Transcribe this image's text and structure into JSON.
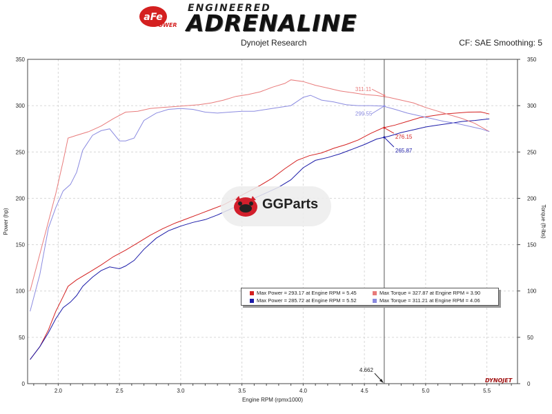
{
  "brand": {
    "badge_text": "aFe",
    "badge_sub": "POWER",
    "line1": "ENGINEERED",
    "line2": "ADRENALINE"
  },
  "header": {
    "left": "Dynojet Research",
    "right": "CF: SAE Smoothing: 5"
  },
  "watermark": {
    "text": "GGParts"
  },
  "colors": {
    "power_run1": "#d42020",
    "power_run2": "#1a1aa8",
    "torque_run1": "#e87a7a",
    "torque_run2": "#8a8ae0",
    "grid": "#d0d0d0",
    "cursor": "#555555"
  },
  "legend": [
    {
      "color": "#d42020",
      "text": "Max Power = 293.17 at Engine RPM = 5.45"
    },
    {
      "color": "#e87a7a",
      "text": "Max Torque = 327.87 at Engine RPM = 3.90"
    },
    {
      "color": "#1a1aa8",
      "text": "Max Power = 285.72 at Engine RPM = 5.52"
    },
    {
      "color": "#8a8ae0",
      "text": "Max Torque = 311.21 at Engine RPM = 4.06"
    }
  ],
  "chart_data": {
    "type": "line",
    "xlabel": "Engine RPM (rpmx1000)",
    "ylabel_left": "Power (hp)",
    "ylabel_right": "Torque (ft-lbs)",
    "xlim": [
      1.75,
      5.75
    ],
    "ylim": [
      0,
      350
    ],
    "xticks": [
      "2.0",
      "2.5",
      "3.0",
      "3.5",
      "4.0",
      "4.5",
      "5.0",
      "5.5"
    ],
    "yticks": [
      "0",
      "50",
      "100",
      "150",
      "200",
      "250",
      "300",
      "350"
    ],
    "grid": true,
    "cursor": {
      "x": 4.662,
      "label": "4.662"
    },
    "annotations": [
      {
        "text": "311.11",
        "x": 4.662,
        "y": 311.11,
        "series": 2
      },
      {
        "text": "299.55",
        "x": 4.662,
        "y": 299.55,
        "series": 3
      },
      {
        "text": "276.15",
        "x": 4.662,
        "y": 276.15,
        "series": 0
      },
      {
        "text": "265.87",
        "x": 4.662,
        "y": 265.87,
        "series": 1
      }
    ],
    "watermark_logo": "DYNOJET",
    "series": [
      {
        "x": [
          1.77,
          1.85,
          1.92,
          1.98,
          2.04,
          2.08,
          2.15,
          2.25,
          2.35,
          2.45,
          2.55,
          2.65,
          2.75,
          2.85,
          2.95,
          3.05,
          3.15,
          3.25,
          3.35,
          3.45,
          3.55,
          3.65,
          3.75,
          3.85,
          3.95,
          4.05,
          4.15,
          4.25,
          4.35,
          4.45,
          4.55,
          4.65,
          4.75,
          4.85,
          4.95,
          5.05,
          5.15,
          5.25,
          5.35,
          5.45,
          5.52
        ],
        "values": [
          26,
          40,
          58,
          78,
          94,
          105,
          112,
          120,
          128,
          137,
          144,
          152,
          160,
          167,
          173,
          178,
          183,
          188,
          193,
          200,
          207,
          214,
          222,
          232,
          241,
          246,
          249,
          254,
          258,
          263,
          270,
          276,
          279,
          283,
          287,
          289,
          291,
          292,
          293,
          293.17,
          291
        ]
      },
      {
        "x": [
          1.77,
          1.85,
          1.92,
          1.98,
          2.04,
          2.1,
          2.15,
          2.2,
          2.28,
          2.35,
          2.42,
          2.5,
          2.55,
          2.62,
          2.7,
          2.8,
          2.9,
          3.0,
          3.1,
          3.2,
          3.3,
          3.4,
          3.5,
          3.6,
          3.7,
          3.8,
          3.9,
          4.0,
          4.1,
          4.2,
          4.3,
          4.4,
          4.5,
          4.6,
          4.7,
          4.8,
          4.9,
          5.0,
          5.1,
          5.2,
          5.3,
          5.4,
          5.52
        ],
        "values": [
          26,
          40,
          55,
          70,
          82,
          88,
          95,
          105,
          115,
          122,
          126,
          124,
          127,
          133,
          145,
          157,
          165,
          170,
          174,
          177,
          182,
          188,
          194,
          200,
          206,
          212,
          220,
          233,
          241,
          244,
          248,
          253,
          258,
          264,
          267,
          271,
          274,
          277,
          279,
          281,
          283,
          284,
          285.72
        ]
      },
      {
        "x": [
          1.77,
          1.85,
          1.92,
          1.98,
          2.04,
          2.08,
          2.15,
          2.25,
          2.35,
          2.45,
          2.55,
          2.65,
          2.75,
          2.85,
          2.95,
          3.05,
          3.15,
          3.25,
          3.35,
          3.45,
          3.55,
          3.65,
          3.75,
          3.85,
          3.9,
          4.0,
          4.1,
          4.2,
          4.3,
          4.4,
          4.5,
          4.6,
          4.7,
          4.8,
          4.9,
          5.0,
          5.1,
          5.2,
          5.3,
          5.4,
          5.52
        ],
        "values": [
          100,
          140,
          175,
          205,
          240,
          265,
          268,
          272,
          278,
          286,
          293,
          294,
          297,
          298,
          299,
          300,
          301,
          303,
          306,
          310,
          312,
          315,
          320,
          324,
          327.87,
          326,
          322,
          319,
          316,
          314,
          312,
          311,
          309,
          306,
          303,
          298,
          294,
          290,
          286,
          281,
          272
        ]
      },
      {
        "x": [
          1.77,
          1.85,
          1.92,
          1.98,
          2.04,
          2.1,
          2.15,
          2.2,
          2.28,
          2.35,
          2.42,
          2.5,
          2.55,
          2.62,
          2.7,
          2.8,
          2.9,
          3.0,
          3.1,
          3.2,
          3.3,
          3.4,
          3.5,
          3.6,
          3.7,
          3.8,
          3.9,
          4.0,
          4.06,
          4.15,
          4.25,
          4.35,
          4.45,
          4.55,
          4.65,
          4.75,
          4.85,
          4.95,
          5.05,
          5.15,
          5.25,
          5.35,
          5.45,
          5.52
        ],
        "values": [
          78,
          118,
          168,
          190,
          208,
          215,
          228,
          252,
          268,
          273,
          275,
          262,
          262,
          265,
          284,
          292,
          296,
          297,
          296,
          293,
          292,
          293,
          294,
          294,
          296,
          298,
          300,
          309,
          311.21,
          306,
          304,
          301,
          300,
          300,
          299.55,
          296,
          292,
          289,
          286,
          283,
          281,
          278,
          275,
          272
        ]
      }
    ]
  }
}
